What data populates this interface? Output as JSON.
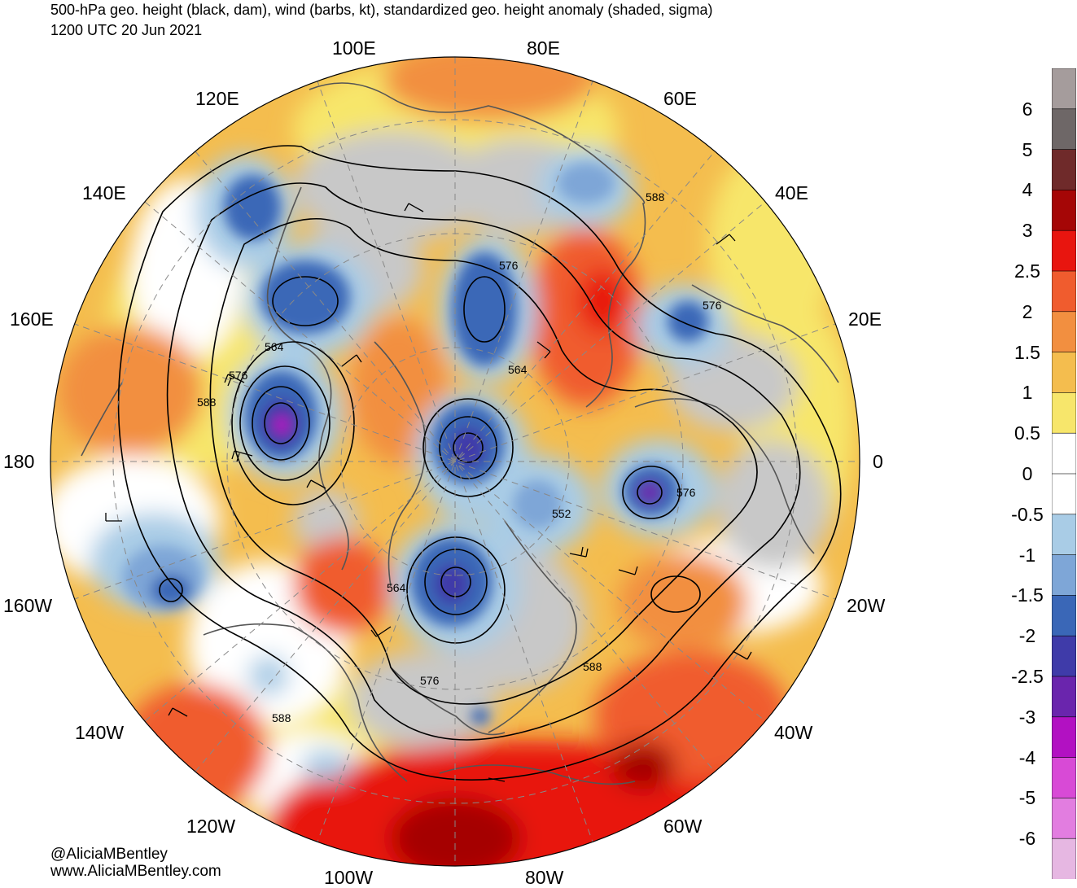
{
  "header": {
    "title_line1": "500-hPa geo. height (black, dam), wind (barbs, kt), standardized geo. height anomaly (shaded, sigma)",
    "title_line2": "1200 UTC 20 Jun 2021"
  },
  "credits": {
    "twitter": "@AliciaMBentley",
    "website": "www.AliciaMBentley.com"
  },
  "map": {
    "projection": "north polar stereographic",
    "longitude_labels": [
      "100E",
      "80E",
      "60E",
      "40E",
      "20E",
      "0",
      "20W",
      "40W",
      "60W",
      "80W",
      "100W",
      "120W",
      "140W",
      "160W",
      "180",
      "160E",
      "140E",
      "120E"
    ],
    "contour_labels": [
      "564",
      "576",
      "588",
      "576",
      "588",
      "564",
      "552",
      "576",
      "564",
      "588",
      "576",
      "588",
      "576",
      "564"
    ]
  },
  "colorbar": {
    "labels": [
      "6",
      "5",
      "4",
      "3",
      "2.5",
      "2",
      "1.5",
      "1",
      "0.5",
      "0",
      "-0.5",
      "-1",
      "-1.5",
      "-2",
      "-2.5",
      "-3",
      "-4",
      "-5",
      "-6"
    ],
    "colors": [
      "#a59c9c",
      "#6e6767",
      "#6f2a2a",
      "#a50606",
      "#e8150f",
      "#f05c2e",
      "#f28f40",
      "#f4bd4e",
      "#f7e66b",
      "#ffffff",
      "#ffffff",
      "#a9cce6",
      "#7ea6d7",
      "#3a67b7",
      "#3f3ba9",
      "#6a25ad",
      "#b211c2",
      "#d84ad6",
      "#e27de0",
      "#e6b7e2"
    ]
  }
}
